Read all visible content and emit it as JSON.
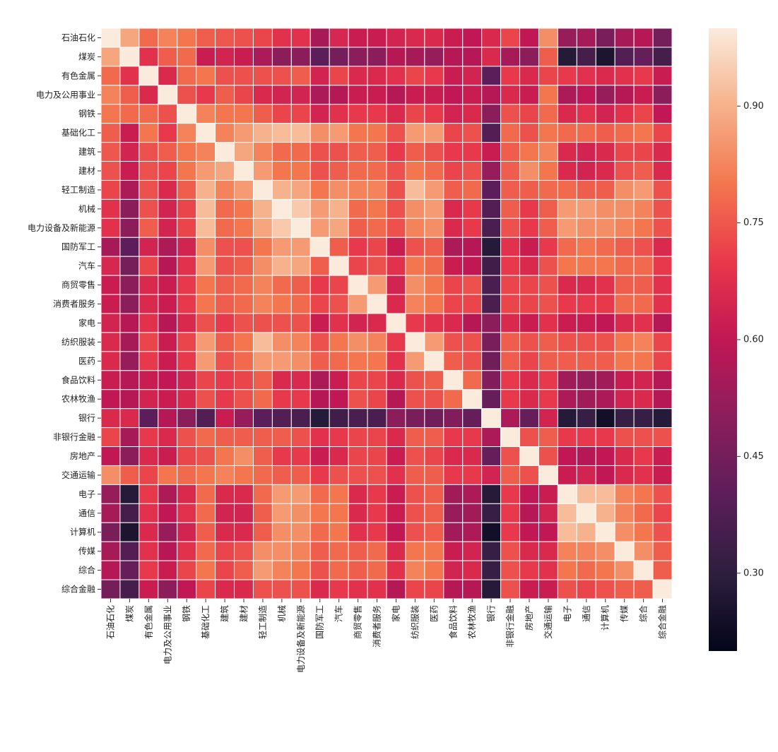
{
  "chart_data": {
    "type": "heatmap",
    "title": "",
    "xlabel": "",
    "ylabel": "",
    "labels": [
      "石油石化",
      "煤炭",
      "有色金属",
      "电力及公用事业",
      "钢铁",
      "基础化工",
      "建筑",
      "建材",
      "轻工制造",
      "机械",
      "电力设备及新能源",
      "国防军工",
      "汽车",
      "商贸零售",
      "消费者服务",
      "家电",
      "纺织服装",
      "医药",
      "食品饮料",
      "农林牧渔",
      "银行",
      "非银行金融",
      "房地产",
      "交通运输",
      "电子",
      "通信",
      "计算机",
      "传媒",
      "综合",
      "综合金融"
    ],
    "colorbar": {
      "min": 0.2,
      "max": 1.0,
      "ticks": [
        "0.30",
        "0.45",
        "0.60",
        "0.75",
        "0.90"
      ],
      "tick_values": [
        0.3,
        0.45,
        0.6,
        0.75,
        0.9
      ]
    },
    "colormap": "rocket",
    "grid": true,
    "matrix": [
      [
        1.0,
        0.88,
        0.78,
        0.82,
        0.8,
        0.76,
        0.75,
        0.74,
        0.72,
        0.68,
        0.68,
        0.55,
        0.65,
        0.62,
        0.62,
        0.64,
        0.66,
        0.66,
        0.62,
        0.6,
        0.66,
        0.72,
        0.6,
        0.84,
        0.52,
        0.55,
        0.46,
        0.55,
        0.58,
        0.45
      ],
      [
        0.88,
        1.0,
        0.68,
        0.76,
        0.78,
        0.62,
        0.64,
        0.62,
        0.56,
        0.5,
        0.5,
        0.4,
        0.45,
        0.5,
        0.5,
        0.58,
        0.55,
        0.52,
        0.58,
        0.58,
        0.66,
        0.55,
        0.5,
        0.76,
        0.28,
        0.35,
        0.26,
        0.38,
        0.42,
        0.35
      ],
      [
        0.78,
        0.68,
        1.0,
        0.66,
        0.78,
        0.8,
        0.74,
        0.74,
        0.74,
        0.74,
        0.76,
        0.64,
        0.72,
        0.66,
        0.66,
        0.68,
        0.72,
        0.7,
        0.62,
        0.64,
        0.4,
        0.7,
        0.66,
        0.72,
        0.7,
        0.68,
        0.66,
        0.68,
        0.7,
        0.62
      ],
      [
        0.82,
        0.76,
        0.66,
        1.0,
        0.74,
        0.7,
        0.76,
        0.72,
        0.66,
        0.64,
        0.64,
        0.56,
        0.58,
        0.62,
        0.62,
        0.58,
        0.62,
        0.62,
        0.6,
        0.62,
        0.58,
        0.66,
        0.62,
        0.8,
        0.56,
        0.6,
        0.52,
        0.58,
        0.62,
        0.5
      ],
      [
        0.8,
        0.78,
        0.78,
        0.74,
        1.0,
        0.82,
        0.8,
        0.8,
        0.76,
        0.72,
        0.72,
        0.64,
        0.68,
        0.7,
        0.7,
        0.66,
        0.72,
        0.7,
        0.64,
        0.66,
        0.5,
        0.74,
        0.72,
        0.78,
        0.66,
        0.68,
        0.64,
        0.68,
        0.72,
        0.6
      ],
      [
        0.76,
        0.62,
        0.8,
        0.7,
        0.82,
        1.0,
        0.82,
        0.86,
        0.9,
        0.92,
        0.92,
        0.84,
        0.86,
        0.8,
        0.8,
        0.74,
        0.86,
        0.86,
        0.72,
        0.74,
        0.38,
        0.78,
        0.74,
        0.8,
        0.78,
        0.78,
        0.76,
        0.78,
        0.8,
        0.72
      ],
      [
        0.75,
        0.64,
        0.74,
        0.76,
        0.8,
        0.82,
        1.0,
        0.88,
        0.82,
        0.78,
        0.78,
        0.74,
        0.74,
        0.76,
        0.76,
        0.7,
        0.76,
        0.74,
        0.7,
        0.7,
        0.62,
        0.76,
        0.8,
        0.82,
        0.66,
        0.64,
        0.66,
        0.72,
        0.72,
        0.66
      ],
      [
        0.74,
        0.62,
        0.74,
        0.72,
        0.8,
        0.86,
        0.88,
        1.0,
        0.86,
        0.8,
        0.8,
        0.74,
        0.76,
        0.78,
        0.78,
        0.74,
        0.8,
        0.78,
        0.72,
        0.74,
        0.52,
        0.76,
        0.84,
        0.8,
        0.66,
        0.64,
        0.66,
        0.74,
        0.76,
        0.66
      ],
      [
        0.72,
        0.56,
        0.74,
        0.66,
        0.76,
        0.9,
        0.82,
        0.86,
        1.0,
        0.9,
        0.88,
        0.8,
        0.84,
        0.82,
        0.82,
        0.74,
        0.92,
        0.86,
        0.76,
        0.78,
        0.4,
        0.76,
        0.76,
        0.78,
        0.78,
        0.76,
        0.76,
        0.84,
        0.86,
        0.74
      ],
      [
        0.68,
        0.5,
        0.74,
        0.64,
        0.72,
        0.92,
        0.78,
        0.8,
        0.9,
        1.0,
        0.94,
        0.86,
        0.9,
        0.78,
        0.8,
        0.74,
        0.84,
        0.86,
        0.66,
        0.7,
        0.38,
        0.76,
        0.7,
        0.76,
        0.86,
        0.86,
        0.84,
        0.84,
        0.82,
        0.74
      ],
      [
        0.68,
        0.5,
        0.76,
        0.64,
        0.72,
        0.92,
        0.78,
        0.8,
        0.88,
        0.94,
        1.0,
        0.86,
        0.88,
        0.76,
        0.78,
        0.74,
        0.82,
        0.84,
        0.66,
        0.7,
        0.36,
        0.74,
        0.7,
        0.76,
        0.86,
        0.84,
        0.84,
        0.82,
        0.8,
        0.74
      ],
      [
        0.55,
        0.4,
        0.64,
        0.56,
        0.64,
        0.84,
        0.74,
        0.74,
        0.8,
        0.86,
        0.86,
        1.0,
        0.76,
        0.7,
        0.72,
        0.62,
        0.74,
        0.76,
        0.56,
        0.58,
        0.28,
        0.68,
        0.62,
        0.7,
        0.78,
        0.8,
        0.78,
        0.76,
        0.74,
        0.66
      ],
      [
        0.65,
        0.45,
        0.72,
        0.58,
        0.68,
        0.86,
        0.74,
        0.76,
        0.84,
        0.9,
        0.88,
        0.76,
        1.0,
        0.72,
        0.74,
        0.68,
        0.8,
        0.78,
        0.62,
        0.6,
        0.34,
        0.7,
        0.66,
        0.74,
        0.8,
        0.8,
        0.8,
        0.78,
        0.78,
        0.7
      ],
      [
        0.62,
        0.5,
        0.66,
        0.62,
        0.7,
        0.8,
        0.76,
        0.78,
        0.82,
        0.78,
        0.76,
        0.7,
        0.72,
        1.0,
        0.86,
        0.64,
        0.84,
        0.8,
        0.72,
        0.74,
        0.36,
        0.72,
        0.72,
        0.74,
        0.66,
        0.66,
        0.68,
        0.76,
        0.76,
        0.68
      ],
      [
        0.62,
        0.5,
        0.66,
        0.62,
        0.7,
        0.8,
        0.76,
        0.78,
        0.82,
        0.8,
        0.78,
        0.72,
        0.74,
        0.86,
        1.0,
        0.66,
        0.82,
        0.8,
        0.72,
        0.72,
        0.36,
        0.72,
        0.72,
        0.74,
        0.7,
        0.7,
        0.7,
        0.78,
        0.78,
        0.68
      ],
      [
        0.64,
        0.58,
        0.68,
        0.58,
        0.66,
        0.74,
        0.7,
        0.74,
        0.74,
        0.74,
        0.74,
        0.62,
        0.68,
        0.64,
        0.66,
        1.0,
        0.7,
        0.68,
        0.66,
        0.58,
        0.5,
        0.66,
        0.62,
        0.68,
        0.62,
        0.62,
        0.6,
        0.66,
        0.68,
        0.58
      ],
      [
        0.66,
        0.55,
        0.72,
        0.62,
        0.72,
        0.86,
        0.76,
        0.8,
        0.92,
        0.84,
        0.82,
        0.74,
        0.8,
        0.84,
        0.82,
        0.7,
        1.0,
        0.86,
        0.74,
        0.74,
        0.46,
        0.76,
        0.74,
        0.76,
        0.74,
        0.74,
        0.74,
        0.8,
        0.82,
        0.72
      ],
      [
        0.66,
        0.52,
        0.7,
        0.62,
        0.7,
        0.86,
        0.74,
        0.78,
        0.86,
        0.86,
        0.84,
        0.76,
        0.78,
        0.8,
        0.8,
        0.68,
        0.86,
        1.0,
        0.76,
        0.74,
        0.44,
        0.76,
        0.72,
        0.76,
        0.76,
        0.76,
        0.76,
        0.8,
        0.8,
        0.72
      ],
      [
        0.62,
        0.58,
        0.62,
        0.6,
        0.64,
        0.72,
        0.7,
        0.72,
        0.76,
        0.66,
        0.66,
        0.56,
        0.62,
        0.72,
        0.72,
        0.66,
        0.74,
        0.76,
        1.0,
        0.78,
        0.48,
        0.7,
        0.66,
        0.7,
        0.54,
        0.52,
        0.54,
        0.62,
        0.64,
        0.58
      ],
      [
        0.6,
        0.58,
        0.64,
        0.62,
        0.66,
        0.74,
        0.7,
        0.74,
        0.78,
        0.7,
        0.7,
        0.58,
        0.6,
        0.74,
        0.72,
        0.58,
        0.74,
        0.74,
        0.78,
        1.0,
        0.42,
        0.7,
        0.66,
        0.7,
        0.56,
        0.54,
        0.56,
        0.64,
        0.66,
        0.58
      ],
      [
        0.66,
        0.66,
        0.4,
        0.58,
        0.5,
        0.38,
        0.62,
        0.52,
        0.4,
        0.38,
        0.36,
        0.28,
        0.34,
        0.36,
        0.36,
        0.5,
        0.46,
        0.44,
        0.48,
        0.42,
        1.0,
        0.56,
        0.42,
        0.64,
        0.28,
        0.32,
        0.24,
        0.32,
        0.32,
        0.28
      ],
      [
        0.72,
        0.55,
        0.7,
        0.66,
        0.74,
        0.78,
        0.76,
        0.76,
        0.76,
        0.76,
        0.74,
        0.68,
        0.7,
        0.72,
        0.72,
        0.66,
        0.76,
        0.76,
        0.7,
        0.7,
        0.56,
        1.0,
        0.74,
        0.76,
        0.7,
        0.7,
        0.7,
        0.74,
        0.74,
        0.74
      ],
      [
        0.6,
        0.5,
        0.66,
        0.62,
        0.72,
        0.74,
        0.8,
        0.84,
        0.76,
        0.7,
        0.7,
        0.62,
        0.66,
        0.72,
        0.72,
        0.62,
        0.74,
        0.72,
        0.66,
        0.66,
        0.42,
        0.74,
        1.0,
        0.74,
        0.6,
        0.58,
        0.6,
        0.66,
        0.7,
        0.62
      ],
      [
        0.84,
        0.76,
        0.72,
        0.8,
        0.78,
        0.8,
        0.82,
        0.8,
        0.78,
        0.76,
        0.76,
        0.7,
        0.74,
        0.74,
        0.74,
        0.68,
        0.76,
        0.76,
        0.7,
        0.7,
        0.64,
        0.76,
        0.74,
        1.0,
        0.62,
        0.64,
        0.6,
        0.66,
        0.68,
        0.62
      ],
      [
        0.52,
        0.28,
        0.7,
        0.56,
        0.66,
        0.78,
        0.66,
        0.66,
        0.78,
        0.86,
        0.86,
        0.78,
        0.8,
        0.66,
        0.7,
        0.62,
        0.74,
        0.76,
        0.54,
        0.56,
        0.28,
        0.7,
        0.6,
        0.62,
        1.0,
        0.92,
        0.92,
        0.82,
        0.8,
        0.74
      ],
      [
        0.55,
        0.35,
        0.68,
        0.6,
        0.68,
        0.78,
        0.64,
        0.64,
        0.76,
        0.86,
        0.84,
        0.8,
        0.8,
        0.66,
        0.7,
        0.62,
        0.74,
        0.76,
        0.52,
        0.54,
        0.32,
        0.7,
        0.58,
        0.64,
        0.92,
        1.0,
        0.9,
        0.82,
        0.78,
        0.72
      ],
      [
        0.46,
        0.26,
        0.66,
        0.52,
        0.64,
        0.76,
        0.66,
        0.66,
        0.76,
        0.84,
        0.84,
        0.78,
        0.8,
        0.68,
        0.7,
        0.6,
        0.74,
        0.76,
        0.54,
        0.56,
        0.24,
        0.7,
        0.6,
        0.6,
        0.92,
        0.9,
        1.0,
        0.84,
        0.8,
        0.74
      ],
      [
        0.55,
        0.38,
        0.68,
        0.58,
        0.68,
        0.78,
        0.72,
        0.74,
        0.84,
        0.84,
        0.82,
        0.76,
        0.78,
        0.76,
        0.78,
        0.66,
        0.8,
        0.8,
        0.62,
        0.64,
        0.32,
        0.74,
        0.66,
        0.66,
        0.82,
        0.82,
        0.84,
        1.0,
        0.84,
        0.76
      ],
      [
        0.58,
        0.42,
        0.7,
        0.62,
        0.72,
        0.8,
        0.72,
        0.76,
        0.86,
        0.82,
        0.8,
        0.74,
        0.78,
        0.76,
        0.78,
        0.68,
        0.82,
        0.8,
        0.64,
        0.66,
        0.32,
        0.74,
        0.7,
        0.68,
        0.8,
        0.78,
        0.8,
        0.84,
        1.0,
        0.76
      ],
      [
        0.45,
        0.35,
        0.62,
        0.5,
        0.6,
        0.72,
        0.66,
        0.66,
        0.74,
        0.74,
        0.74,
        0.66,
        0.7,
        0.68,
        0.68,
        0.58,
        0.72,
        0.72,
        0.58,
        0.58,
        0.28,
        0.74,
        0.62,
        0.62,
        0.74,
        0.72,
        0.74,
        0.76,
        0.76,
        1.0
      ]
    ]
  }
}
